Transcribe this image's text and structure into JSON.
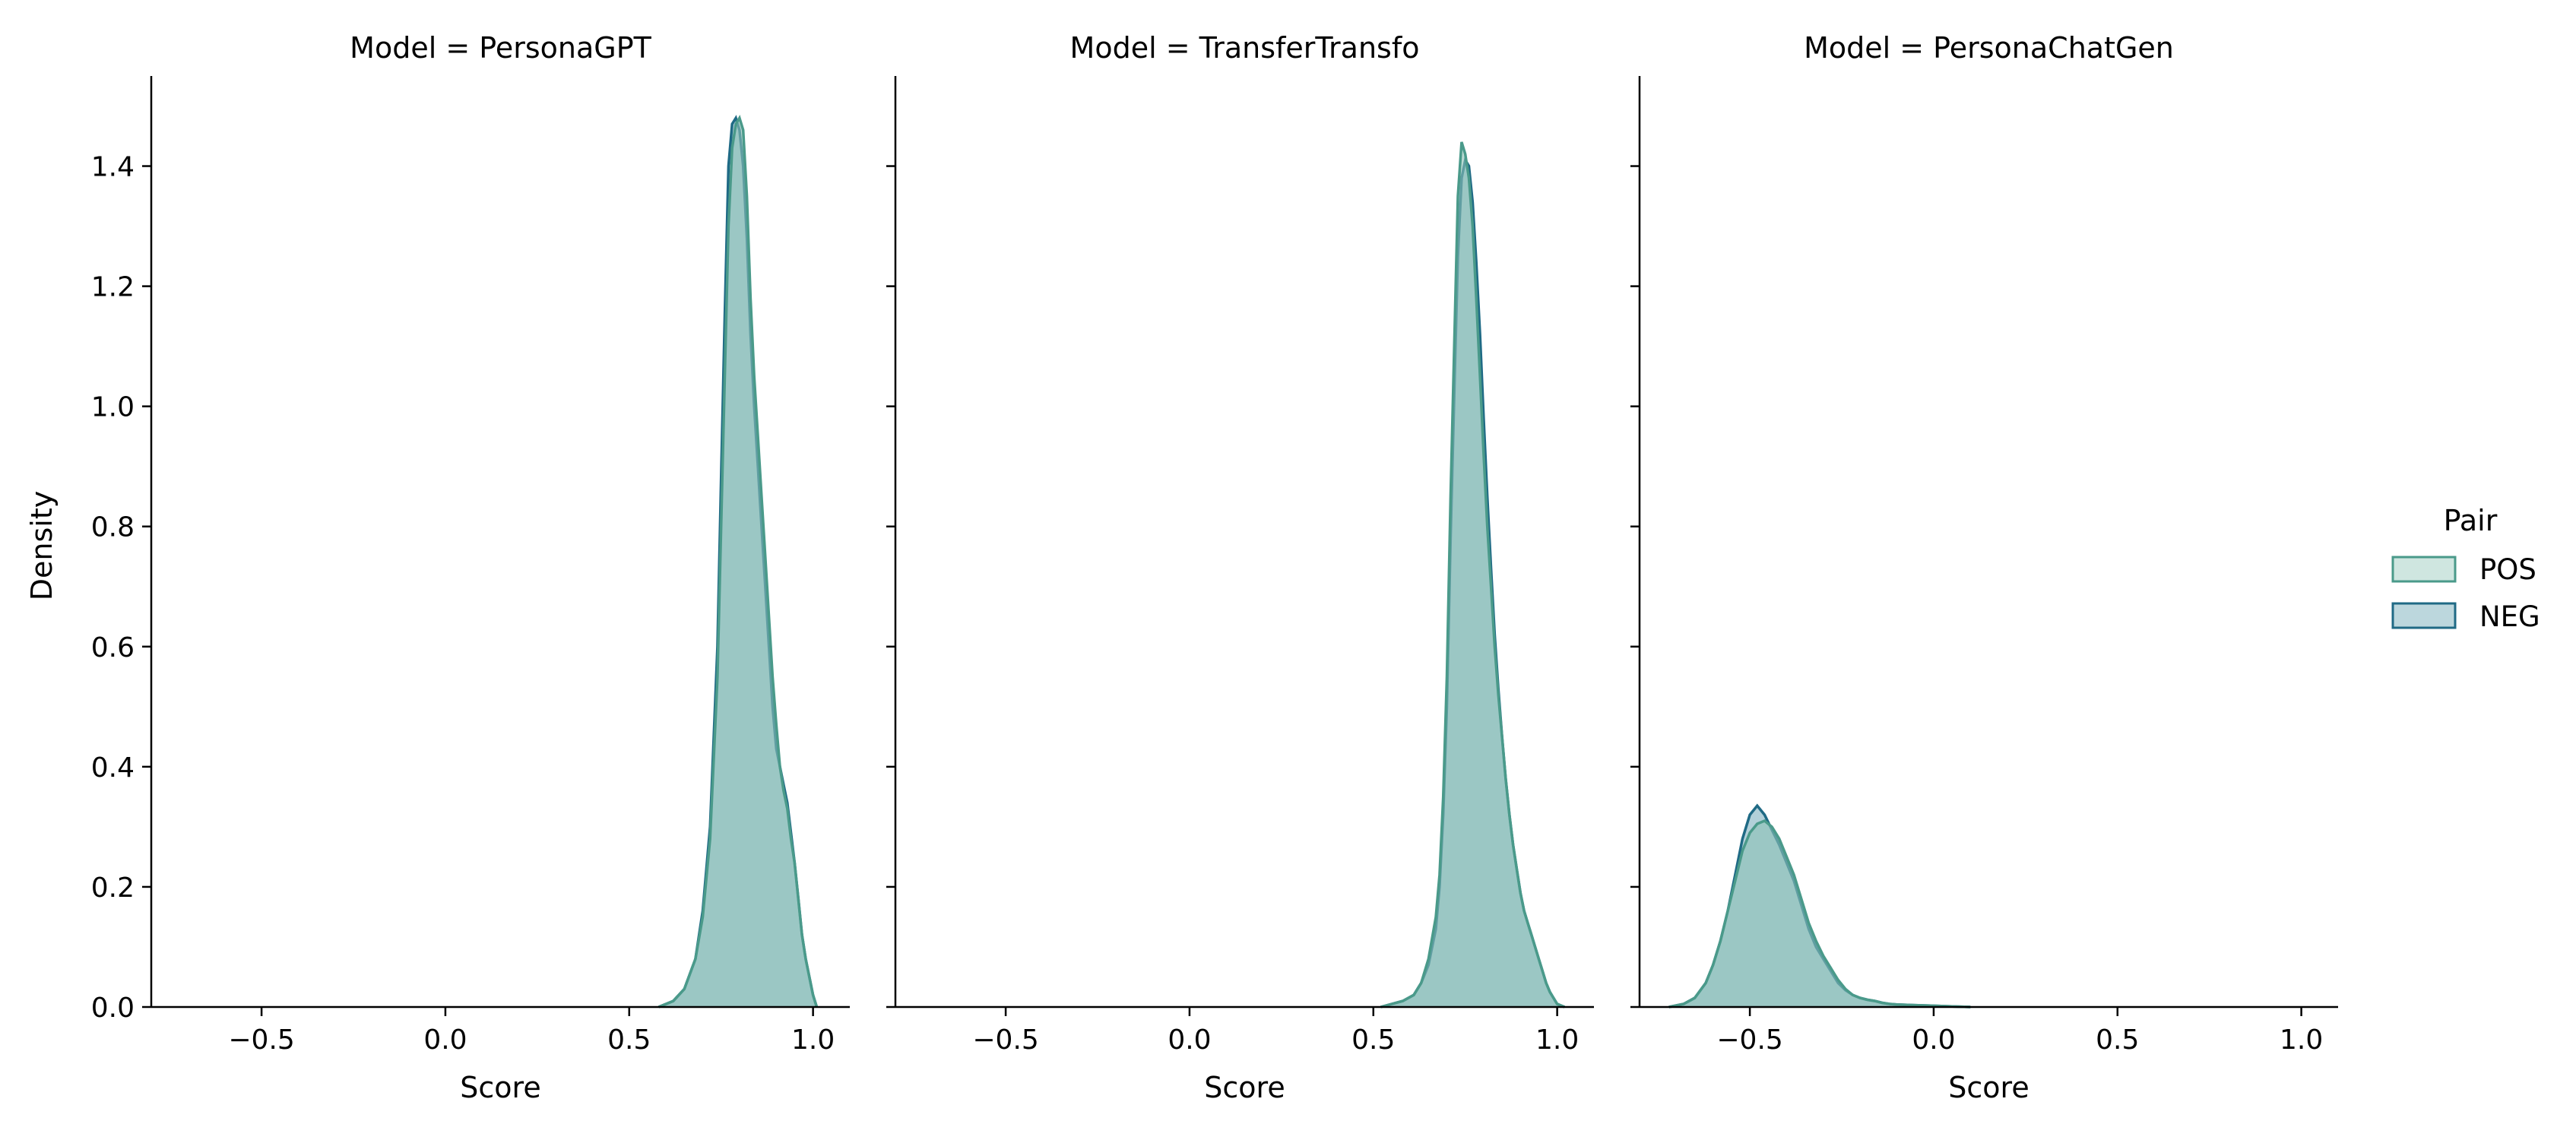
{
  "chart_data": [
    {
      "type": "area",
      "title": "Model = PersonaGPT",
      "xlabel": "Score",
      "ylabel": "Density",
      "xlim": [
        -0.8,
        1.1
      ],
      "ylim": [
        0,
        1.55
      ],
      "xticks": [
        -0.5,
        0.0,
        0.5,
        1.0
      ],
      "xtick_labels": [
        "−0.5",
        "0.0",
        "0.5",
        "1.0"
      ],
      "yticks": [
        0.0,
        0.2,
        0.4,
        0.6,
        0.8,
        1.0,
        1.2,
        1.4
      ],
      "ytick_labels": [
        "0.0",
        "0.2",
        "0.4",
        "0.6",
        "0.8",
        "1.0",
        "1.2",
        "1.4"
      ],
      "grid": false,
      "series": [
        {
          "name": "POS",
          "x": [
            0.58,
            0.62,
            0.65,
            0.68,
            0.7,
            0.72,
            0.74,
            0.75,
            0.76,
            0.77,
            0.78,
            0.79,
            0.8,
            0.81,
            0.82,
            0.83,
            0.84,
            0.85,
            0.86,
            0.87,
            0.88,
            0.89,
            0.9,
            0.91,
            0.92,
            0.93,
            0.94,
            0.95,
            0.96,
            0.97,
            0.98,
            0.99,
            1.0,
            1.01
          ],
          "y": [
            0.0,
            0.01,
            0.03,
            0.08,
            0.15,
            0.28,
            0.55,
            0.8,
            1.05,
            1.3,
            1.43,
            1.47,
            1.48,
            1.46,
            1.35,
            1.18,
            1.05,
            0.95,
            0.85,
            0.75,
            0.65,
            0.55,
            0.47,
            0.4,
            0.36,
            0.33,
            0.28,
            0.24,
            0.18,
            0.12,
            0.08,
            0.05,
            0.02,
            0.0
          ]
        },
        {
          "name": "NEG",
          "x": [
            0.58,
            0.62,
            0.65,
            0.68,
            0.7,
            0.72,
            0.74,
            0.75,
            0.76,
            0.77,
            0.78,
            0.79,
            0.8,
            0.81,
            0.82,
            0.83,
            0.84,
            0.85,
            0.86,
            0.87,
            0.88,
            0.89,
            0.9,
            0.91,
            0.92,
            0.93,
            0.94,
            0.95,
            0.96,
            0.97,
            0.98,
            0.99,
            1.0,
            1.01
          ],
          "y": [
            0.0,
            0.01,
            0.03,
            0.08,
            0.16,
            0.3,
            0.6,
            0.88,
            1.15,
            1.4,
            1.47,
            1.48,
            1.46,
            1.4,
            1.28,
            1.12,
            1.0,
            0.9,
            0.8,
            0.7,
            0.6,
            0.5,
            0.43,
            0.4,
            0.37,
            0.34,
            0.29,
            0.24,
            0.18,
            0.12,
            0.08,
            0.05,
            0.02,
            0.0
          ]
        }
      ]
    },
    {
      "type": "area",
      "title": "Model = TransferTransfo",
      "xlabel": "Score",
      "ylabel": "",
      "xlim": [
        -0.8,
        1.1
      ],
      "ylim": [
        0,
        1.55
      ],
      "xticks": [
        -0.5,
        0.0,
        0.5,
        1.0
      ],
      "xtick_labels": [
        "−0.5",
        "0.0",
        "0.5",
        "1.0"
      ],
      "yticks": [
        0.0,
        0.2,
        0.4,
        0.6,
        0.8,
        1.0,
        1.2,
        1.4
      ],
      "ytick_labels": [],
      "grid": false,
      "series": [
        {
          "name": "POS",
          "x": [
            0.52,
            0.55,
            0.58,
            0.61,
            0.63,
            0.65,
            0.67,
            0.68,
            0.69,
            0.7,
            0.71,
            0.72,
            0.73,
            0.74,
            0.75,
            0.76,
            0.77,
            0.78,
            0.79,
            0.8,
            0.81,
            0.82,
            0.83,
            0.84,
            0.85,
            0.86,
            0.87,
            0.88,
            0.89,
            0.9,
            0.91,
            0.92,
            0.93,
            0.94,
            0.95,
            0.96,
            0.97,
            0.98,
            0.99,
            1.0,
            1.02
          ],
          "y": [
            0.0,
            0.005,
            0.01,
            0.02,
            0.04,
            0.08,
            0.15,
            0.22,
            0.35,
            0.55,
            0.85,
            1.1,
            1.35,
            1.44,
            1.42,
            1.38,
            1.3,
            1.18,
            1.05,
            0.92,
            0.8,
            0.7,
            0.6,
            0.52,
            0.45,
            0.38,
            0.32,
            0.27,
            0.23,
            0.19,
            0.16,
            0.14,
            0.12,
            0.1,
            0.08,
            0.06,
            0.04,
            0.025,
            0.015,
            0.005,
            0.0
          ]
        },
        {
          "name": "NEG",
          "x": [
            0.52,
            0.55,
            0.58,
            0.61,
            0.63,
            0.65,
            0.67,
            0.68,
            0.69,
            0.7,
            0.71,
            0.72,
            0.73,
            0.74,
            0.75,
            0.76,
            0.77,
            0.78,
            0.79,
            0.8,
            0.81,
            0.82,
            0.83,
            0.84,
            0.85,
            0.86,
            0.87,
            0.88,
            0.89,
            0.9,
            0.91,
            0.92,
            0.93,
            0.94,
            0.95,
            0.96,
            0.97,
            0.98,
            0.99,
            1.0,
            1.02
          ],
          "y": [
            0.0,
            0.005,
            0.01,
            0.02,
            0.04,
            0.07,
            0.13,
            0.2,
            0.32,
            0.5,
            0.78,
            1.02,
            1.25,
            1.38,
            1.41,
            1.4,
            1.34,
            1.24,
            1.12,
            0.98,
            0.85,
            0.73,
            0.62,
            0.53,
            0.45,
            0.38,
            0.32,
            0.27,
            0.23,
            0.19,
            0.16,
            0.14,
            0.12,
            0.1,
            0.08,
            0.06,
            0.04,
            0.025,
            0.015,
            0.005,
            0.0
          ]
        }
      ]
    },
    {
      "type": "area",
      "title": "Model = PersonaChatGen",
      "xlabel": "Score",
      "ylabel": "",
      "xlim": [
        -0.8,
        1.1
      ],
      "ylim": [
        0,
        1.55
      ],
      "xticks": [
        -0.5,
        0.0,
        0.5,
        1.0
      ],
      "xtick_labels": [
        "−0.5",
        "0.0",
        "0.5",
        "1.0"
      ],
      "yticks": [
        0.0,
        0.2,
        0.4,
        0.6,
        0.8,
        1.0,
        1.2,
        1.4
      ],
      "ytick_labels": [],
      "grid": false,
      "series": [
        {
          "name": "POS",
          "x": [
            -0.72,
            -0.68,
            -0.65,
            -0.62,
            -0.6,
            -0.58,
            -0.56,
            -0.54,
            -0.52,
            -0.5,
            -0.48,
            -0.46,
            -0.44,
            -0.42,
            -0.4,
            -0.38,
            -0.36,
            -0.34,
            -0.32,
            -0.3,
            -0.28,
            -0.26,
            -0.24,
            -0.22,
            -0.2,
            -0.18,
            -0.16,
            -0.14,
            -0.12,
            -0.1,
            -0.05,
            0.0,
            0.05,
            0.1
          ],
          "y": [
            0.0,
            0.005,
            0.015,
            0.04,
            0.07,
            0.11,
            0.16,
            0.21,
            0.26,
            0.29,
            0.305,
            0.31,
            0.3,
            0.28,
            0.25,
            0.22,
            0.18,
            0.14,
            0.11,
            0.085,
            0.065,
            0.045,
            0.03,
            0.02,
            0.015,
            0.012,
            0.01,
            0.007,
            0.005,
            0.004,
            0.003,
            0.002,
            0.001,
            0.0
          ]
        },
        {
          "name": "NEG",
          "x": [
            -0.72,
            -0.68,
            -0.65,
            -0.62,
            -0.6,
            -0.58,
            -0.56,
            -0.54,
            -0.52,
            -0.5,
            -0.48,
            -0.46,
            -0.44,
            -0.42,
            -0.4,
            -0.38,
            -0.36,
            -0.34,
            -0.32,
            -0.3,
            -0.28,
            -0.26,
            -0.24,
            -0.22,
            -0.2,
            -0.18,
            -0.16,
            -0.14,
            -0.12,
            -0.1,
            -0.05,
            0.0,
            0.05,
            0.1
          ],
          "y": [
            0.0,
            0.005,
            0.015,
            0.04,
            0.07,
            0.11,
            0.16,
            0.22,
            0.28,
            0.32,
            0.335,
            0.32,
            0.295,
            0.27,
            0.24,
            0.21,
            0.17,
            0.13,
            0.1,
            0.08,
            0.06,
            0.04,
            0.028,
            0.02,
            0.015,
            0.012,
            0.01,
            0.007,
            0.005,
            0.004,
            0.003,
            0.002,
            0.001,
            0.0
          ]
        }
      ]
    }
  ],
  "legend": {
    "title": "Pair",
    "placement": "right",
    "items": [
      {
        "name": "POS",
        "color": "#4a9a8a",
        "fill": "#cfe6e0"
      },
      {
        "name": "NEG",
        "color": "#1f6a85",
        "fill": "#bcd7dd"
      }
    ]
  },
  "colors": {
    "pos_line": "#4a9a8a",
    "pos_fill": "#8cc2b6",
    "neg_line": "#1f6a85",
    "neg_fill": "#7fb1bf"
  }
}
